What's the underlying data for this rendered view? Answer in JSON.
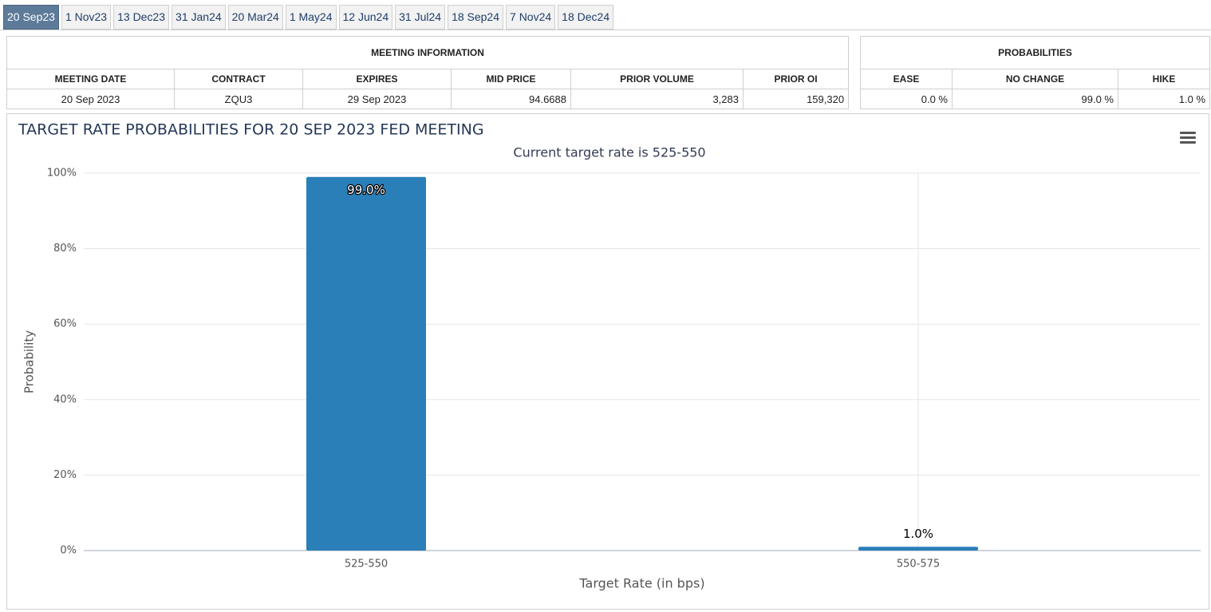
{
  "tabs": [
    {
      "label": "20 Sep23",
      "selected": true
    },
    {
      "label": "1 Nov23",
      "selected": false
    },
    {
      "label": "13 Dec23",
      "selected": false
    },
    {
      "label": "31 Jan24",
      "selected": false
    },
    {
      "label": "20 Mar24",
      "selected": false
    },
    {
      "label": "1 May24",
      "selected": false
    },
    {
      "label": "12 Jun24",
      "selected": false
    },
    {
      "label": "31 Jul24",
      "selected": false
    },
    {
      "label": "18 Sep24",
      "selected": false
    },
    {
      "label": "7 Nov24",
      "selected": false
    },
    {
      "label": "18 Dec24",
      "selected": false
    }
  ],
  "meeting_information": {
    "title": "MEETING INFORMATION",
    "headers": [
      "MEETING DATE",
      "CONTRACT",
      "EXPIRES",
      "MID PRICE",
      "PRIOR VOLUME",
      "PRIOR OI"
    ],
    "rows": [
      [
        "20 Sep 2023",
        "ZQU3",
        "29 Sep 2023",
        "94.6688",
        "3,283",
        "159,320"
      ]
    ]
  },
  "probabilities": {
    "title": "PROBABILITIES",
    "headers": [
      "EASE",
      "NO CHANGE",
      "HIKE"
    ],
    "rows": [
      [
        "0.0 %",
        "99.0 %",
        "1.0 %"
      ]
    ]
  },
  "chart_data": {
    "type": "bar",
    "title": "TARGET RATE PROBABILITIES FOR 20 SEP 2023 FED MEETING",
    "subtitle": "Current target rate is 525-550",
    "x_label": "Target Rate (in bps)",
    "y_label": "Probability",
    "categories": [
      "525-550",
      "550-575"
    ],
    "values": [
      99.0,
      1.0
    ],
    "value_labels": [
      "99.0%",
      "1.0%"
    ],
    "color": "#2a7fb8",
    "ylim": [
      0,
      100
    ],
    "yticks": [
      {
        "value": 0,
        "label": "0%"
      },
      {
        "value": 20,
        "label": "20%"
      },
      {
        "value": 40,
        "label": "40%"
      },
      {
        "value": 60,
        "label": "60%"
      },
      {
        "value": 80,
        "label": "80%"
      },
      {
        "value": 100,
        "label": "100%"
      }
    ],
    "grid": true
  }
}
